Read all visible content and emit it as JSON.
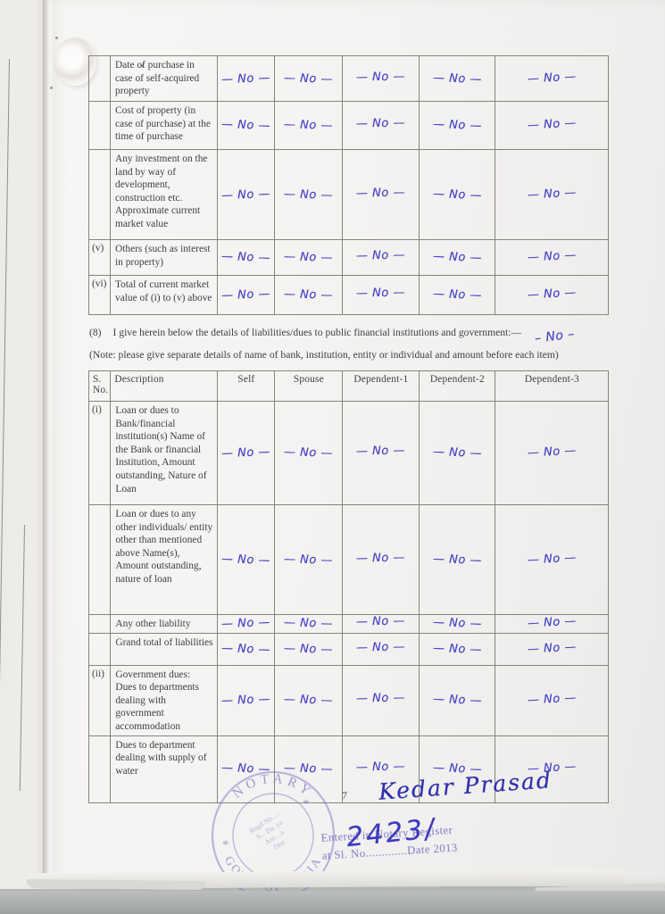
{
  "document": {
    "page_number": "7",
    "signature": "Kedar Prasad"
  },
  "property_table": {
    "rows": [
      {
        "sno": "",
        "desc": "Date of purchase in case of self-acquired property",
        "values": [
          "— No —",
          "— No —",
          "— No —",
          "— No —",
          "— No —"
        ]
      },
      {
        "sno": "",
        "desc": "Cost of property (in case of purchase) at the time of purchase",
        "values": [
          "— No —",
          "— No —",
          "— No —",
          "— No —",
          "— No —"
        ]
      },
      {
        "sno": "",
        "desc": "Any investment on the land by way of development, construction etc. Approximate current market value",
        "values": [
          "— No —",
          "— No —",
          "— No —",
          "— No —",
          "— No —"
        ]
      },
      {
        "sno": "(v)",
        "desc": "Others (such as interest in property)",
        "values": [
          "— No —",
          "— No —",
          "— No —",
          "— No —",
          "— No —"
        ]
      },
      {
        "sno": "(vi)",
        "desc": "Total of current market value of (i) to (v) above",
        "values": [
          "— No —",
          "— No —",
          "— No —",
          "— No —",
          "— No —"
        ]
      }
    ]
  },
  "clause8": {
    "number": "(8)",
    "text": "I give herein below the details of liabilities/dues to public financial institutions and government:—",
    "handwritten": "– No –",
    "note": "(Note: please give separate details of name of bank, institution, entity or individual and amount before each item)"
  },
  "liabilities_table": {
    "headers": [
      "S. No.",
      "Description",
      "Self",
      "Spouse",
      "Dependent-1",
      "Dependent-2",
      "Dependent-3"
    ],
    "rows": [
      {
        "sno": "(i)",
        "desc": "Loan or dues to Bank/financial institution(s) Name of the Bank or financial Institution, Amount outstanding, Nature of Loan",
        "values": [
          "— No —",
          "— No —",
          "— No —",
          "— No —",
          "— No —"
        ]
      },
      {
        "sno": "",
        "desc": "Loan or dues to any other individuals/ entity other than mentioned above Name(s), Amount outstanding, nature of loan",
        "values": [
          "— No —",
          "— No —",
          "— No —",
          "— No —",
          "— No —"
        ]
      },
      {
        "sno": "",
        "desc": "Any other liability",
        "values": [
          "— No —",
          "— No —",
          "— No —",
          "— No —",
          "— No —"
        ]
      },
      {
        "sno": "",
        "desc": "Grand total of liabilities",
        "values": [
          "— No —",
          "— No —",
          "— No —",
          "— No —",
          "— No —"
        ]
      },
      {
        "sno": "(ii)",
        "desc": "Government dues: Dues to departments dealing with government accommodation",
        "values": [
          "— No —",
          "— No —",
          "— No —",
          "— No —",
          "— No —"
        ]
      },
      {
        "sno": "",
        "desc": "Dues to department dealing with supply of water",
        "values": [
          "— No —",
          "— No —",
          "— No —",
          "— No —",
          "— No —"
        ]
      }
    ]
  },
  "stamps": {
    "notary_seal": {
      "top_arc": "NOTARY",
      "bottom_arc": "GOVT. OF INDIA",
      "star": "*",
      "inner_lines": [
        "Regd No.....",
        "S... Da..ya",
        "Am....a",
        "Dist"
      ]
    },
    "register_stamp": {
      "line1": "Entered in Notary Register",
      "line2": "at Sl. No.............Date 2013",
      "handwritten_number": "2423/"
    }
  },
  "colors": {
    "ink": "#4a48c6",
    "signature_ink": "#3030ae",
    "stamp": "#7b72c4"
  }
}
